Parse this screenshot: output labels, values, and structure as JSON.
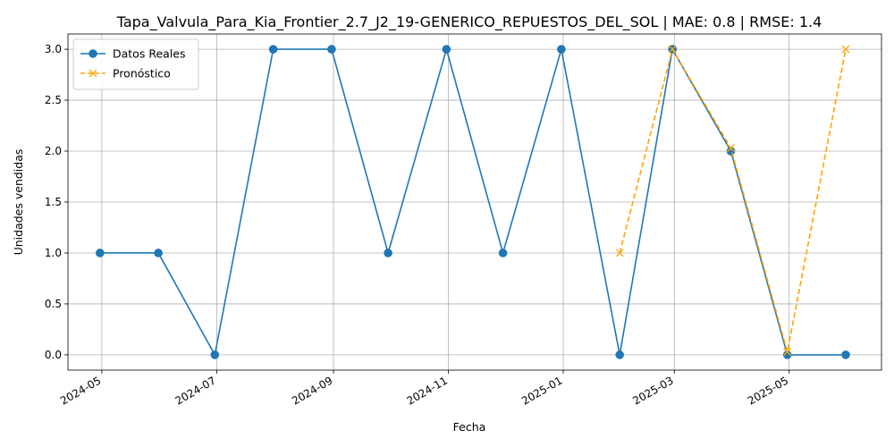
{
  "chart_data": {
    "type": "line",
    "title": "Tapa_Valvula_Para_Kia_Frontier_2.7_J2_19-GENERICO_REPUESTOS_DEL_SOL | MAE: 0.8 | RMSE: 1.4",
    "xlabel": "Fecha",
    "ylabel": "Unidades vendidas",
    "ylim": [
      -0.15,
      3.15
    ],
    "xlim": [
      "2024-04-13",
      "2025-06-19"
    ],
    "grid": true,
    "legend_position": "top-left",
    "x_ticks": [
      "2024-05",
      "2024-07",
      "2024-09",
      "2024-11",
      "2025-01",
      "2025-03",
      "2025-05"
    ],
    "y_ticks": [
      "0.0",
      "0.5",
      "1.0",
      "1.5",
      "2.0",
      "2.5",
      "3.0"
    ],
    "series": [
      {
        "name": "Datos Reales",
        "color": "#1f77b4",
        "style": "solid",
        "marker": "circle",
        "x": [
          "2024-04-30",
          "2024-05-31",
          "2024-06-30",
          "2024-07-31",
          "2024-08-31",
          "2024-09-30",
          "2024-10-31",
          "2024-11-30",
          "2024-12-31",
          "2025-01-31",
          "2025-02-28",
          "2025-03-31",
          "2025-04-30",
          "2025-05-31"
        ],
        "values": [
          1,
          1,
          0,
          3,
          3,
          1,
          3,
          1,
          3,
          0,
          3,
          2,
          0,
          0
        ]
      },
      {
        "name": "Pronóstico",
        "color": "#ffa500",
        "style": "dashed",
        "marker": "x",
        "x": [
          "2025-01-31",
          "2025-02-28",
          "2025-03-31",
          "2025-04-30",
          "2025-05-31"
        ],
        "values": [
          1,
          3,
          2.03,
          0.03,
          3
        ]
      }
    ]
  }
}
